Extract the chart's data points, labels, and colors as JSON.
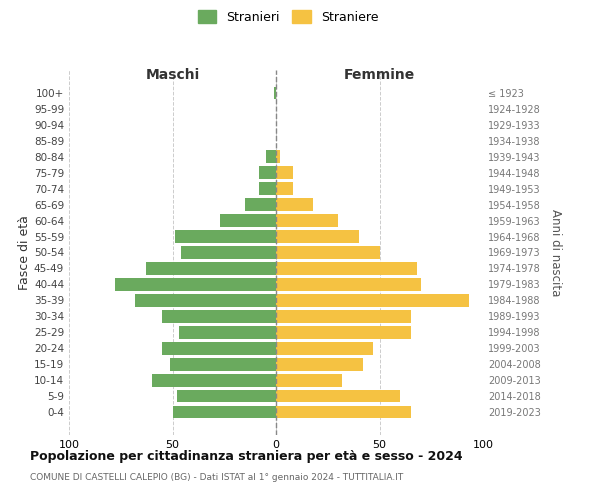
{
  "age_groups": [
    "0-4",
    "5-9",
    "10-14",
    "15-19",
    "20-24",
    "25-29",
    "30-34",
    "35-39",
    "40-44",
    "45-49",
    "50-54",
    "55-59",
    "60-64",
    "65-69",
    "70-74",
    "75-79",
    "80-84",
    "85-89",
    "90-94",
    "95-99",
    "100+"
  ],
  "birth_years": [
    "2019-2023",
    "2014-2018",
    "2009-2013",
    "2004-2008",
    "1999-2003",
    "1994-1998",
    "1989-1993",
    "1984-1988",
    "1979-1983",
    "1974-1978",
    "1969-1973",
    "1964-1968",
    "1959-1963",
    "1954-1958",
    "1949-1953",
    "1944-1948",
    "1939-1943",
    "1934-1938",
    "1929-1933",
    "1924-1928",
    "≤ 1923"
  ],
  "males": [
    50,
    48,
    60,
    51,
    55,
    47,
    55,
    68,
    78,
    63,
    46,
    49,
    27,
    15,
    8,
    8,
    5,
    0,
    0,
    0,
    1
  ],
  "females": [
    65,
    60,
    32,
    42,
    47,
    65,
    65,
    93,
    70,
    68,
    50,
    40,
    30,
    18,
    8,
    8,
    2,
    0,
    0,
    0,
    0
  ],
  "male_color": "#6aaa5e",
  "female_color": "#f5c242",
  "background_color": "#ffffff",
  "grid_color": "#cccccc",
  "title": "Popolazione per cittadinanza straniera per età e sesso - 2024",
  "subtitle": "COMUNE DI CASTELLI CALEPIO (BG) - Dati ISTAT al 1° gennaio 2024 - TUTTITALIA.IT",
  "label_maschi": "Maschi",
  "label_femmine": "Femmine",
  "ylabel_left": "Fasce di età",
  "ylabel_right": "Anni di nascita",
  "legend_stranieri": "Stranieri",
  "legend_straniere": "Straniere",
  "xlim": 100
}
